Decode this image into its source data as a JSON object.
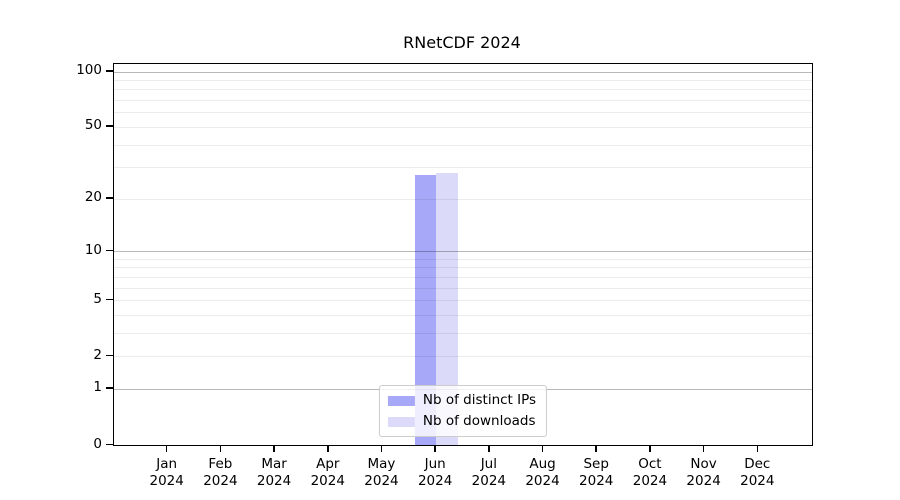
{
  "title": "RNetCDF 2024",
  "colors": {
    "bar_distinct_ips": "#a8a8f8",
    "bar_downloads": "#dbdbf9",
    "axis": "#000000",
    "grid_minor": "#ececec",
    "grid_major": "#b8b8b8",
    "legend_border": "#cccccc"
  },
  "legend": {
    "items": [
      {
        "label": "Nb of distinct IPs",
        "color": "#a8a8f8"
      },
      {
        "label": "Nb of downloads",
        "color": "#dbdbf9"
      }
    ]
  },
  "chart_data": {
    "type": "bar",
    "title": "RNetCDF 2024",
    "xlabel": "",
    "ylabel": "",
    "categories": [
      {
        "month": "Jan",
        "year": "2024"
      },
      {
        "month": "Feb",
        "year": "2024"
      },
      {
        "month": "Mar",
        "year": "2024"
      },
      {
        "month": "Apr",
        "year": "2024"
      },
      {
        "month": "May",
        "year": "2024"
      },
      {
        "month": "Jun",
        "year": "2024"
      },
      {
        "month": "Jul",
        "year": "2024"
      },
      {
        "month": "Aug",
        "year": "2024"
      },
      {
        "month": "Sep",
        "year": "2024"
      },
      {
        "month": "Oct",
        "year": "2024"
      },
      {
        "month": "Nov",
        "year": "2024"
      },
      {
        "month": "Dec",
        "year": "2024"
      }
    ],
    "series": [
      {
        "name": "Nb of distinct IPs",
        "color": "#a8a8f8",
        "values": [
          0,
          0,
          0,
          0,
          0,
          27,
          0,
          0,
          0,
          0,
          0,
          0
        ]
      },
      {
        "name": "Nb of downloads",
        "color": "#dbdbf9",
        "values": [
          0,
          0,
          0,
          0,
          0,
          28,
          0,
          0,
          0,
          0,
          0,
          0
        ]
      }
    ],
    "yscale": "log1p",
    "ylim": [
      0,
      110
    ],
    "yticks": [
      0,
      1,
      2,
      5,
      10,
      20,
      50,
      100
    ],
    "gridlines_minor": [
      2,
      3,
      4,
      5,
      6,
      7,
      8,
      9,
      20,
      30,
      40,
      50,
      60,
      70,
      80,
      90
    ],
    "gridlines_major": [
      1,
      10,
      100
    ],
    "grid": true,
    "legend_position": "lower center inside"
  }
}
